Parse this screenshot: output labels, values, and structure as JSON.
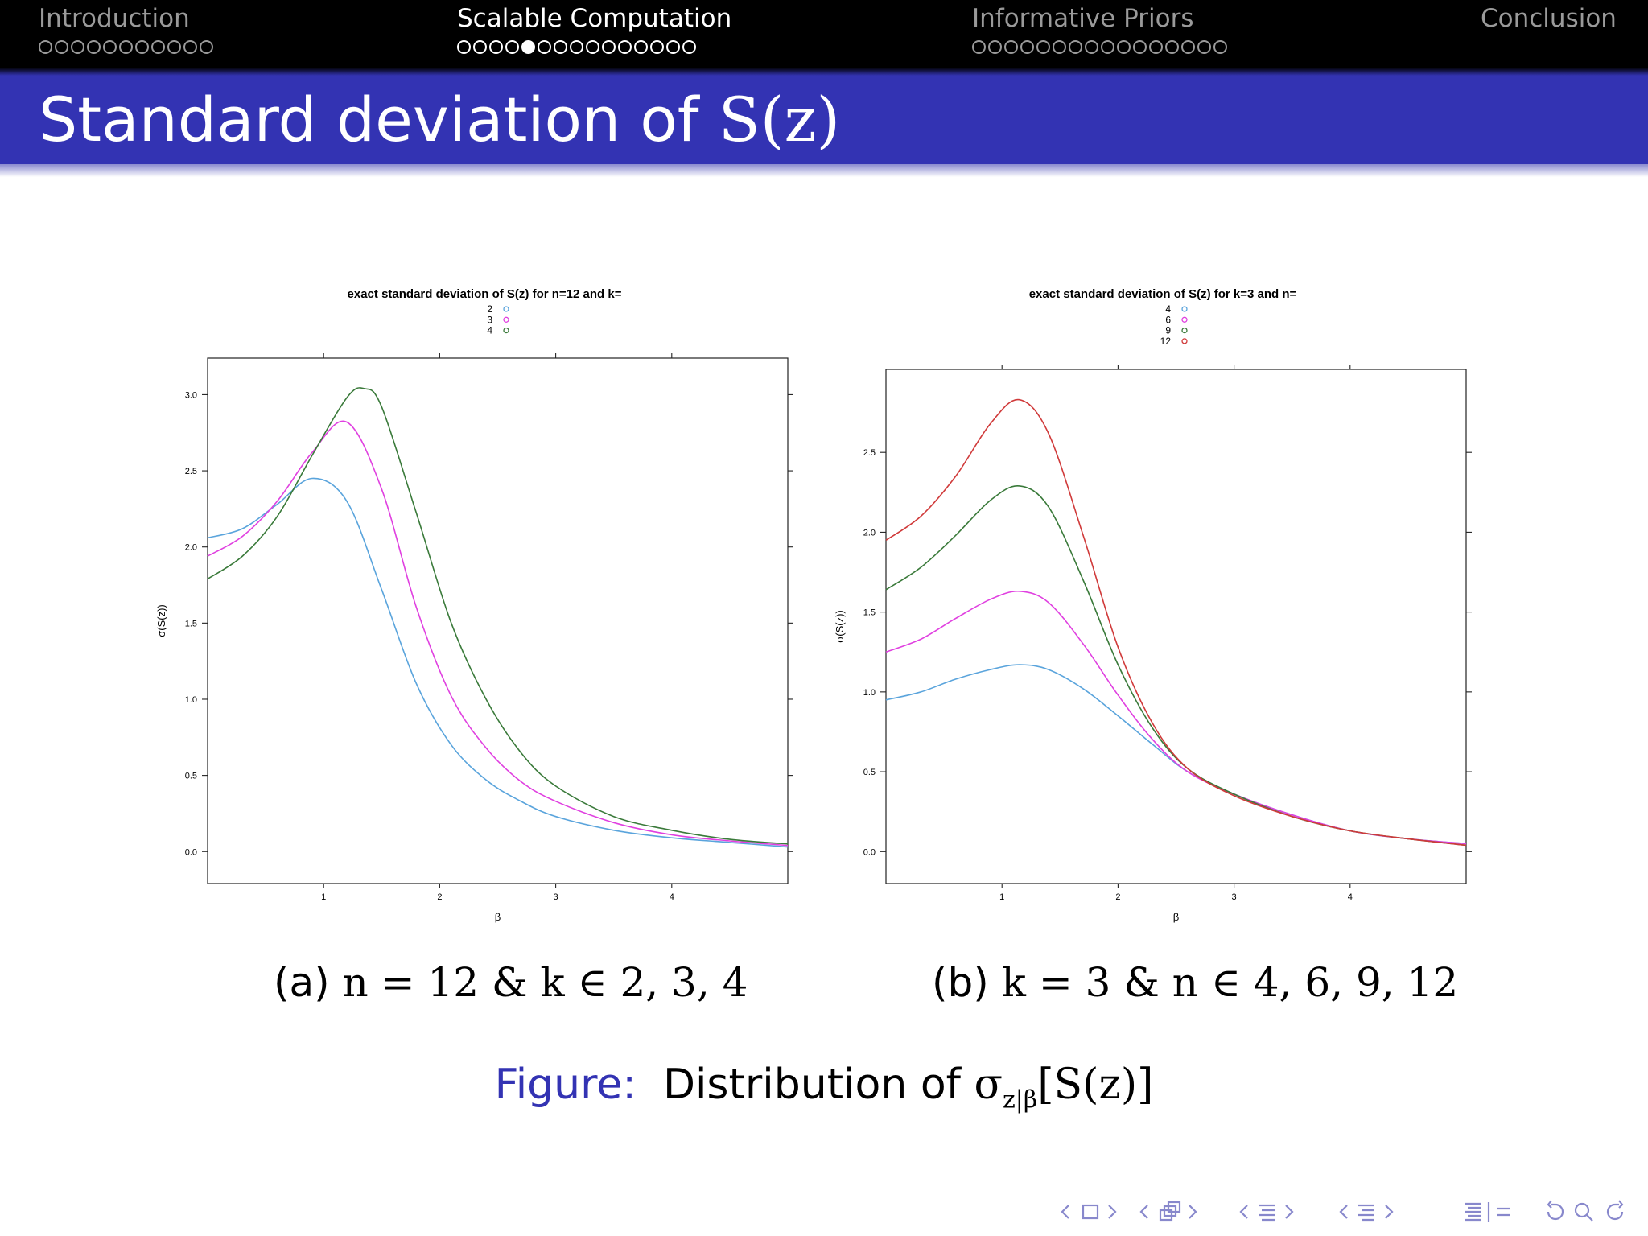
{
  "nav": {
    "sections": [
      {
        "title": "Introduction",
        "dots": 11,
        "active": false,
        "current": -1
      },
      {
        "title": "Scalable Computation",
        "dots": 15,
        "active": true,
        "current": 4
      },
      {
        "title": "Informative Priors",
        "dots": 16,
        "active": false,
        "current": -1
      },
      {
        "title": "Conclusion",
        "dots": 0,
        "active": false,
        "current": -1
      }
    ]
  },
  "frame": {
    "title_text": "Standard deviation of ",
    "title_math": "S(z)"
  },
  "chart_data": [
    {
      "type": "line",
      "title": "exact standard deviation of S(z) for n=12 and k=",
      "xlabel": "β",
      "ylabel": "σ(S(z))",
      "xlim": [
        0,
        5
      ],
      "ylim": [
        -0.21,
        3.24
      ],
      "xticks": [
        1,
        2,
        3,
        4
      ],
      "yticks": [
        0.0,
        0.5,
        1.0,
        1.5,
        2.0,
        2.5,
        3.0
      ],
      "series": [
        {
          "name": "2",
          "color": "#5aa4dc",
          "x": [
            0,
            0.3,
            0.6,
            0.9,
            1.2,
            1.5,
            1.8,
            2.1,
            2.4,
            2.7,
            3.0,
            3.5,
            4.0,
            4.5,
            5.0
          ],
          "y": [
            2.06,
            2.12,
            2.28,
            2.45,
            2.3,
            1.72,
            1.1,
            0.7,
            0.47,
            0.33,
            0.23,
            0.14,
            0.09,
            0.06,
            0.03
          ]
        },
        {
          "name": "3",
          "color": "#e040e0",
          "x": [
            0,
            0.3,
            0.6,
            0.9,
            1.2,
            1.5,
            1.8,
            2.1,
            2.4,
            2.7,
            3.0,
            3.5,
            4.0,
            4.5,
            5.0
          ],
          "y": [
            1.94,
            2.07,
            2.3,
            2.62,
            2.82,
            2.38,
            1.6,
            1.02,
            0.68,
            0.46,
            0.33,
            0.19,
            0.11,
            0.07,
            0.04
          ]
        },
        {
          "name": "4",
          "color": "#3a7a3a",
          "x": [
            0,
            0.3,
            0.6,
            0.9,
            1.2,
            1.35,
            1.5,
            1.8,
            2.1,
            2.4,
            2.7,
            3.0,
            3.5,
            4.0,
            4.5,
            5.0
          ],
          "y": [
            1.79,
            1.94,
            2.2,
            2.6,
            2.98,
            3.04,
            2.92,
            2.22,
            1.5,
            1.0,
            0.65,
            0.43,
            0.23,
            0.14,
            0.08,
            0.05
          ]
        }
      ]
    },
    {
      "type": "line",
      "title": "exact standard deviation of S(z) for k=3 and n=",
      "xlabel": "β",
      "ylabel": "σ(S(z))",
      "xlim": [
        0,
        5
      ],
      "ylim": [
        -0.2,
        3.02
      ],
      "xticks": [
        1,
        2,
        3,
        4
      ],
      "yticks": [
        0.0,
        0.5,
        1.0,
        1.5,
        2.0,
        2.5
      ],
      "series": [
        {
          "name": "4",
          "color": "#5aa4dc",
          "x": [
            0,
            0.3,
            0.6,
            0.9,
            1.15,
            1.4,
            1.7,
            2.0,
            2.3,
            2.6,
            3.0,
            3.5,
            4.0,
            4.5,
            5.0
          ],
          "y": [
            0.95,
            1.0,
            1.08,
            1.14,
            1.17,
            1.14,
            1.02,
            0.85,
            0.67,
            0.5,
            0.36,
            0.23,
            0.13,
            0.08,
            0.05
          ]
        },
        {
          "name": "6",
          "color": "#e040e0",
          "x": [
            0,
            0.3,
            0.6,
            0.9,
            1.15,
            1.4,
            1.7,
            2.0,
            2.3,
            2.6,
            3.0,
            3.5,
            4.0,
            4.5,
            5.0
          ],
          "y": [
            1.25,
            1.33,
            1.46,
            1.58,
            1.63,
            1.56,
            1.3,
            0.98,
            0.7,
            0.5,
            0.36,
            0.23,
            0.13,
            0.08,
            0.05
          ]
        },
        {
          "name": "9",
          "color": "#3a7a3a",
          "x": [
            0,
            0.3,
            0.6,
            0.9,
            1.15,
            1.4,
            1.7,
            2.0,
            2.3,
            2.6,
            3.0,
            3.5,
            4.0,
            4.5,
            5.0
          ],
          "y": [
            1.64,
            1.78,
            1.98,
            2.2,
            2.29,
            2.16,
            1.7,
            1.17,
            0.77,
            0.52,
            0.36,
            0.22,
            0.13,
            0.08,
            0.04
          ]
        },
        {
          "name": "12",
          "color": "#d03a3a",
          "x": [
            0,
            0.3,
            0.6,
            0.9,
            1.15,
            1.4,
            1.7,
            2.0,
            2.3,
            2.6,
            3.0,
            3.5,
            4.0,
            4.5,
            5.0
          ],
          "y": [
            1.95,
            2.1,
            2.35,
            2.68,
            2.83,
            2.62,
            1.98,
            1.28,
            0.8,
            0.52,
            0.35,
            0.22,
            0.13,
            0.08,
            0.04
          ]
        }
      ]
    }
  ],
  "captions": {
    "a": {
      "label": "(a) ",
      "math": "n = 12 & k ∈ 2, 3, 4"
    },
    "b": {
      "label": "(b) ",
      "math": "k = 3 & n ∈ 4, 6, 9, 12"
    }
  },
  "figure": {
    "label": "Figure:",
    "text": "Distribution of ",
    "math": "σ",
    "sub": "z|β",
    "rest": "[S(z)]"
  },
  "colors": {
    "structure": "#3333b3",
    "nav_bg": "#000000",
    "nav_inactive": "#9a9a9a",
    "beamer_nav": "#8888cc"
  },
  "beamer_nav_icons": [
    "frame-prev-icon",
    "frame-icon",
    "frame-next-icon",
    "subsection-prev-icon",
    "subsection-icon",
    "subsection-next-icon",
    "section-prev-icon",
    "section-icon",
    "section-next-icon",
    "part-prev-icon",
    "part-icon",
    "part-next-icon",
    "outline-icon",
    "back-icon",
    "search-icon",
    "forward-icon"
  ]
}
